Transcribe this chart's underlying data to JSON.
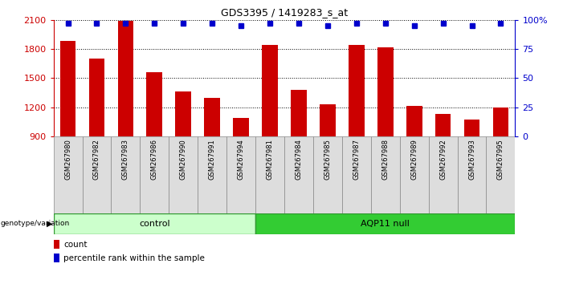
{
  "title": "GDS3395 / 1419283_s_at",
  "samples": [
    "GSM267980",
    "GSM267982",
    "GSM267983",
    "GSM267986",
    "GSM267990",
    "GSM267991",
    "GSM267994",
    "GSM267981",
    "GSM267984",
    "GSM267985",
    "GSM267987",
    "GSM267988",
    "GSM267989",
    "GSM267992",
    "GSM267993",
    "GSM267995"
  ],
  "bar_heights": [
    1880,
    1700,
    2090,
    1560,
    1360,
    1300,
    1090,
    1840,
    1380,
    1230,
    1840,
    1820,
    1210,
    1130,
    1070,
    1200
  ],
  "percentile_ranks": [
    97,
    97,
    97,
    97,
    97,
    97,
    95,
    97,
    97,
    95,
    97,
    97,
    95,
    97,
    95,
    97
  ],
  "bar_color": "#cc0000",
  "dot_color": "#0000cc",
  "ylim_left": [
    900,
    2100
  ],
  "ylim_right": [
    0,
    100
  ],
  "yticks_left": [
    900,
    1200,
    1500,
    1800,
    2100
  ],
  "yticks_right": [
    0,
    25,
    50,
    75,
    100
  ],
  "control_samples": 7,
  "control_label": "control",
  "aqp11_label": "AQP11 null",
  "control_color": "#ccffcc",
  "aqp11_color": "#33cc33",
  "group_bar_color": "#dddddd",
  "legend_count_label": "count",
  "legend_pct_label": "percentile rank within the sample",
  "genotype_label": "genotype/variation",
  "background_color": "#ffffff",
  "left_axis_color": "#cc0000",
  "right_axis_color": "#0000cc"
}
